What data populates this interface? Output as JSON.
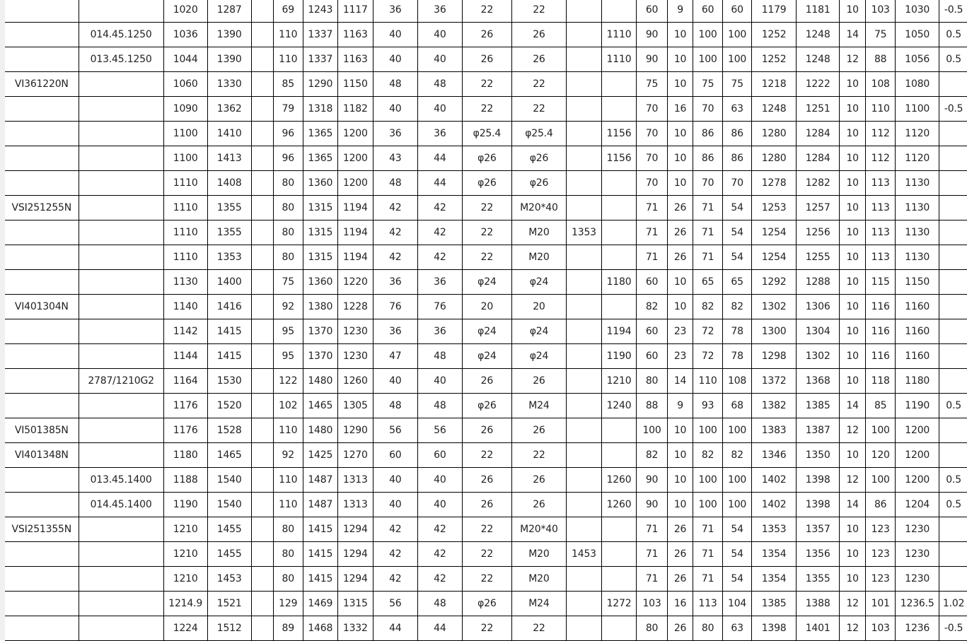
{
  "rows": [
    [
      "",
      "",
      "1020",
      "1287",
      "",
      "69",
      "1243",
      "1117",
      "36",
      "36",
      "22",
      "22",
      "",
      "",
      "60",
      "9",
      "60",
      "60",
      "1179",
      "1181",
      "10",
      "103",
      "1030",
      "-0.5"
    ],
    [
      "",
      "014.45.1250",
      "1036",
      "1390",
      "",
      "110",
      "1337",
      "1163",
      "40",
      "40",
      "26",
      "26",
      "",
      "1110",
      "90",
      "10",
      "100",
      "100",
      "1252",
      "1248",
      "14",
      "75",
      "1050",
      "0.5"
    ],
    [
      "",
      "013.45.1250",
      "1044",
      "1390",
      "",
      "110",
      "1337",
      "1163",
      "40",
      "40",
      "26",
      "26",
      "",
      "1110",
      "90",
      "10",
      "100",
      "100",
      "1252",
      "1248",
      "12",
      "88",
      "1056",
      "0.5"
    ],
    [
      "VI361220N",
      "",
      "1060",
      "1330",
      "",
      "85",
      "1290",
      "1150",
      "48",
      "48",
      "22",
      "22",
      "",
      "",
      "75",
      "10",
      "75",
      "75",
      "1218",
      "1222",
      "10",
      "108",
      "1080",
      ""
    ],
    [
      "",
      "",
      "1090",
      "1362",
      "",
      "79",
      "1318",
      "1182",
      "40",
      "40",
      "22",
      "22",
      "",
      "",
      "70",
      "16",
      "70",
      "63",
      "1248",
      "1251",
      "10",
      "110",
      "1100",
      "-0.5"
    ],
    [
      "",
      "",
      "1100",
      "1410",
      "",
      "96",
      "1365",
      "1200",
      "36",
      "36",
      "φ25.4",
      "φ25.4",
      "",
      "1156",
      "70",
      "10",
      "86",
      "86",
      "1280",
      "1284",
      "10",
      "112",
      "1120",
      ""
    ],
    [
      "",
      "",
      "1100",
      "1413",
      "",
      "96",
      "1365",
      "1200",
      "43",
      "44",
      "φ26",
      "φ26",
      "",
      "1156",
      "70",
      "10",
      "86",
      "86",
      "1280",
      "1284",
      "10",
      "112",
      "1120",
      ""
    ],
    [
      "",
      "",
      "1110",
      "1408",
      "",
      "80",
      "1360",
      "1200",
      "48",
      "44",
      "φ26",
      "φ26",
      "",
      "",
      "70",
      "10",
      "70",
      "70",
      "1278",
      "1282",
      "10",
      "113",
      "1130",
      ""
    ],
    [
      "VSI251255N",
      "",
      "1110",
      "1355",
      "",
      "80",
      "1315",
      "1194",
      "42",
      "42",
      "22",
      "M20*40",
      "",
      "",
      "71",
      "26",
      "71",
      "54",
      "1253",
      "1257",
      "10",
      "113",
      "1130",
      ""
    ],
    [
      "",
      "",
      "1110",
      "1355",
      "",
      "80",
      "1315",
      "1194",
      "42",
      "42",
      "22",
      "M20",
      "1353",
      "",
      "71",
      "26",
      "71",
      "54",
      "1254",
      "1256",
      "10",
      "113",
      "1130",
      ""
    ],
    [
      "",
      "",
      "1110",
      "1353",
      "",
      "80",
      "1315",
      "1194",
      "42",
      "42",
      "22",
      "M20",
      "",
      "",
      "71",
      "26",
      "71",
      "54",
      "1254",
      "1255",
      "10",
      "113",
      "1130",
      ""
    ],
    [
      "",
      "",
      "1130",
      "1400",
      "",
      "75",
      "1360",
      "1220",
      "36",
      "36",
      "φ24",
      "φ24",
      "",
      "1180",
      "60",
      "10",
      "65",
      "65",
      "1292",
      "1288",
      "10",
      "115",
      "1150",
      ""
    ],
    [
      "VI401304N",
      "",
      "1140",
      "1416",
      "",
      "92",
      "1380",
      "1228",
      "76",
      "76",
      "20",
      "20",
      "",
      "",
      "82",
      "10",
      "82",
      "82",
      "1302",
      "1306",
      "10",
      "116",
      "1160",
      ""
    ],
    [
      "",
      "",
      "1142",
      "1415",
      "",
      "95",
      "1370",
      "1230",
      "36",
      "36",
      "φ24",
      "φ24",
      "",
      "1194",
      "60",
      "23",
      "72",
      "78",
      "1300",
      "1304",
      "10",
      "116",
      "1160",
      ""
    ],
    [
      "",
      "",
      "1144",
      "1415",
      "",
      "95",
      "1370",
      "1230",
      "47",
      "48",
      "φ24",
      "φ24",
      "",
      "1190",
      "60",
      "23",
      "72",
      "78",
      "1298",
      "1302",
      "10",
      "116",
      "1160",
      ""
    ],
    [
      "",
      "2787/1210G2",
      "1164",
      "1530",
      "",
      "122",
      "1480",
      "1260",
      "40",
      "40",
      "26",
      "26",
      "",
      "1210",
      "80",
      "14",
      "110",
      "108",
      "1372",
      "1368",
      "10",
      "118",
      "1180",
      ""
    ],
    [
      "",
      "",
      "1176",
      "1520",
      "",
      "102",
      "1465",
      "1305",
      "48",
      "48",
      "φ26",
      "M24",
      "",
      "1240",
      "88",
      "9",
      "93",
      "68",
      "1382",
      "1385",
      "14",
      "85",
      "1190",
      "0.5"
    ],
    [
      "VI501385N",
      "",
      "1176",
      "1528",
      "",
      "110",
      "1480",
      "1290",
      "56",
      "56",
      "26",
      "26",
      "",
      "",
      "100",
      "10",
      "100",
      "100",
      "1383",
      "1387",
      "12",
      "100",
      "1200",
      ""
    ],
    [
      "VI401348N",
      "",
      "1180",
      "1465",
      "",
      "92",
      "1425",
      "1270",
      "60",
      "60",
      "22",
      "22",
      "",
      "",
      "82",
      "10",
      "82",
      "82",
      "1346",
      "1350",
      "10",
      "120",
      "1200",
      ""
    ],
    [
      "",
      "013.45.1400",
      "1188",
      "1540",
      "",
      "110",
      "1487",
      "1313",
      "40",
      "40",
      "26",
      "26",
      "",
      "1260",
      "90",
      "10",
      "100",
      "100",
      "1402",
      "1398",
      "12",
      "100",
      "1200",
      "0.5"
    ],
    [
      "",
      "014.45.1400",
      "1190",
      "1540",
      "",
      "110",
      "1487",
      "1313",
      "40",
      "40",
      "26",
      "26",
      "",
      "1260",
      "90",
      "10",
      "100",
      "100",
      "1402",
      "1398",
      "14",
      "86",
      "1204",
      "0.5"
    ],
    [
      "VSI251355N",
      "",
      "1210",
      "1455",
      "",
      "80",
      "1415",
      "1294",
      "42",
      "42",
      "22",
      "M20*40",
      "",
      "",
      "71",
      "26",
      "71",
      "54",
      "1353",
      "1357",
      "10",
      "123",
      "1230",
      ""
    ],
    [
      "",
      "",
      "1210",
      "1455",
      "",
      "80",
      "1415",
      "1294",
      "42",
      "42",
      "22",
      "M20",
      "1453",
      "",
      "71",
      "26",
      "71",
      "54",
      "1354",
      "1356",
      "10",
      "123",
      "1230",
      ""
    ],
    [
      "",
      "",
      "1210",
      "1453",
      "",
      "80",
      "1415",
      "1294",
      "42",
      "42",
      "22",
      "M20",
      "",
      "",
      "71",
      "26",
      "71",
      "54",
      "1354",
      "1355",
      "10",
      "123",
      "1230",
      ""
    ],
    [
      "",
      "",
      "1214.9",
      "1521",
      "",
      "129",
      "1469",
      "1315",
      "56",
      "48",
      "φ26",
      "M24",
      "",
      "1272",
      "103",
      "16",
      "113",
      "104",
      "1385",
      "1388",
      "12",
      "101",
      "1236.5",
      "1.02"
    ],
    [
      "",
      "",
      "1224",
      "1512",
      "",
      "89",
      "1468",
      "1332",
      "44",
      "44",
      "22",
      "22",
      "",
      "",
      "80",
      "26",
      "80",
      "63",
      "1398",
      "1401",
      "12",
      "103",
      "1236",
      "-0.5"
    ]
  ]
}
